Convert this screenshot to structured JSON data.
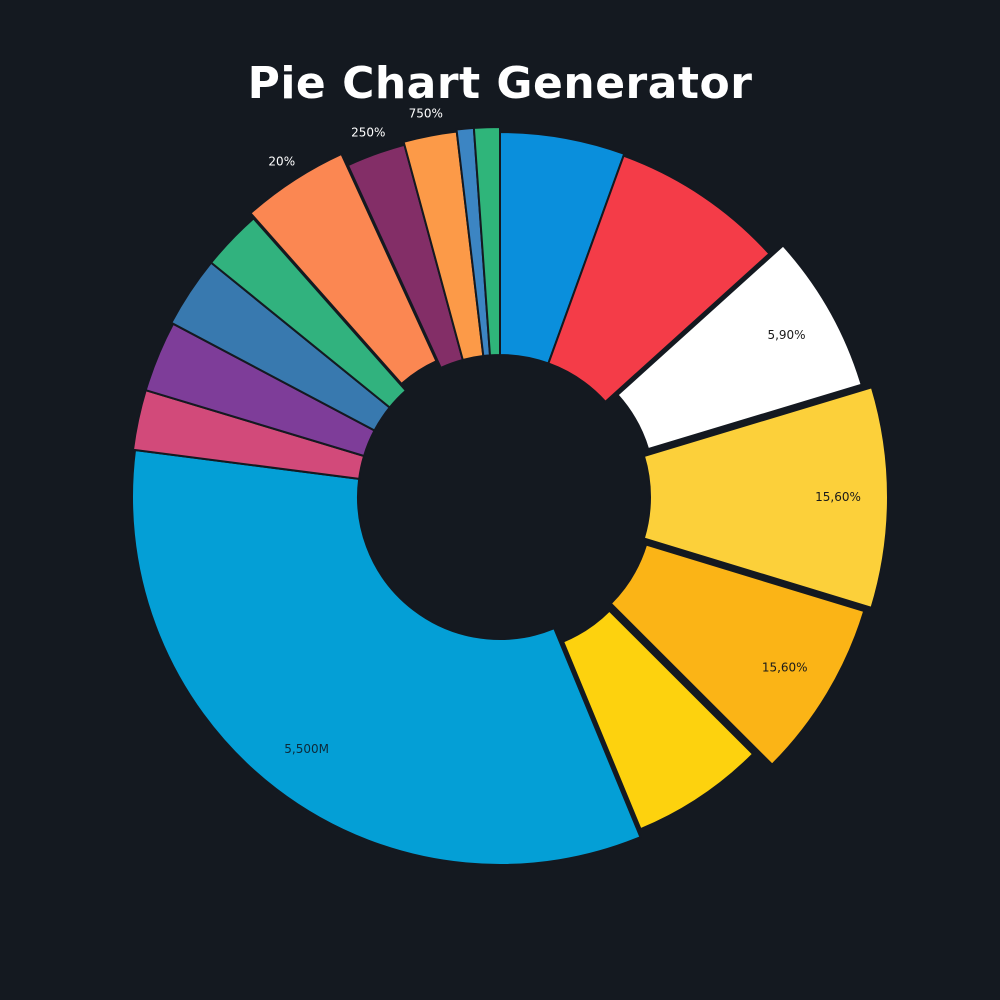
{
  "title": "Pie Chart Generator",
  "chart_data": {
    "type": "pie",
    "title": "Pie Chart Generator",
    "style": "donut with exploded slices",
    "background": "#141920",
    "slices": [
      {
        "value": 5.9,
        "color": "#0a8fdc",
        "label": ""
      },
      {
        "value": 8.3,
        "color": "#f43c48",
        "label": ""
      },
      {
        "value": 7.5,
        "color": "#ffffff",
        "label": "5,90%"
      },
      {
        "value": 10.0,
        "color": "#fcd03a",
        "label": "15,60%"
      },
      {
        "value": 8.3,
        "color": "#fbb416",
        "label": "15,60%"
      },
      {
        "value": 6.7,
        "color": "#fdd20e",
        "label": ""
      },
      {
        "value": 35.5,
        "color": "#049fd6",
        "label": "5,500M"
      },
      {
        "value": 2.8,
        "color": "#d24a7a",
        "label": ""
      },
      {
        "value": 3.3,
        "color": "#7e3d99",
        "label": ""
      },
      {
        "value": 3.3,
        "color": "#3879af",
        "label": ""
      },
      {
        "value": 2.8,
        "color": "#31b27e",
        "label": ""
      },
      {
        "value": 5.0,
        "color": "#fb8752",
        "label": "20%"
      },
      {
        "value": 2.8,
        "color": "#832e67",
        "label": "250%"
      },
      {
        "value": 2.5,
        "color": "#fc9a48",
        "label": "750%"
      },
      {
        "value": 0.8,
        "color": "#3c85c3",
        "label": ""
      },
      {
        "value": 1.2,
        "color": "#2fb57a",
        "label": ""
      }
    ]
  }
}
